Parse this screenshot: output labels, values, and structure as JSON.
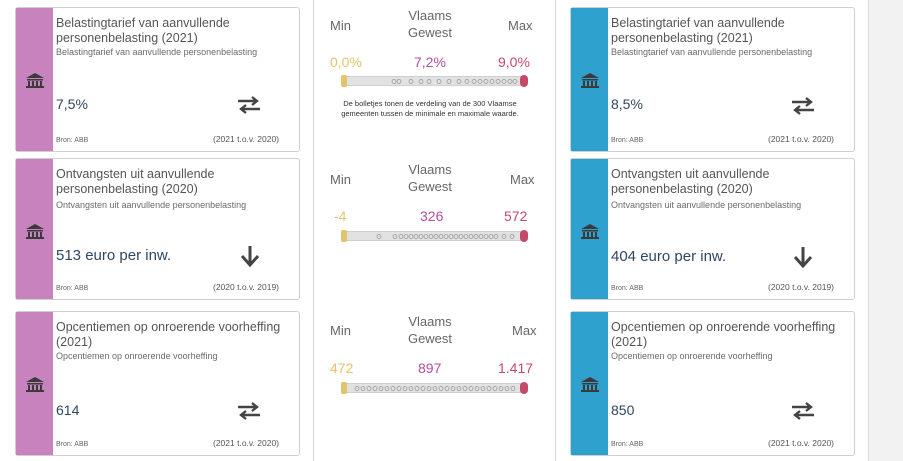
{
  "colors": {
    "left_stripe": "#c882bd",
    "right_stripe": "#2fa1cf",
    "min": "#e2c46b",
    "region": "#b14fa0",
    "max": "#c44a6a",
    "value_text": "#2f4763"
  },
  "left_cards": [
    {
      "title": "Belastingtarief van aanvullende personenbelasting (2021)",
      "subtitle": "Belastingtarief van aanvullende personenbelasting",
      "value": "7,5%",
      "trend_icon": "equal-arrows-icon",
      "source": "Bron: ABB",
      "period": "(2021 t.o.v. 2020)"
    },
    {
      "title": "Ontvangsten uit aanvullende personenbelasting (2020)",
      "subtitle": "Ontvangsten uit aanvullende personenbelasting",
      "value": "513 euro per inw.",
      "trend_icon": "arrow-down-icon",
      "source": "Bron: ABB",
      "period": "(2020 t.o.v. 2019)"
    },
    {
      "title": "Opcentiemen op onroerende voorheffing (2021)",
      "subtitle": "Opcentiemen op onroerende voorheffing",
      "value": "614",
      "trend_icon": "equal-arrows-icon",
      "source": "Bron: ABB",
      "period": "(2021 t.o.v. 2020)"
    }
  ],
  "right_cards": [
    {
      "title": "Belastingtarief van aanvullende personenbelasting (2021)",
      "subtitle": "Belastingtarief van aanvullende personenbelasting",
      "value": "8,5%",
      "trend_icon": "equal-arrows-icon",
      "source": "Bron: ABB",
      "period": "(2021 t.o.v. 2020)"
    },
    {
      "title": "Ontvangsten uit aanvullende personenbelasting (2020)",
      "subtitle": "Ontvangsten uit aanvullende personenbelasting",
      "value": "404 euro per inw.",
      "trend_icon": "arrow-down-icon",
      "source": "Bron: ABB",
      "period": "(2020 t.o.v. 2019)"
    },
    {
      "title": "Opcentiemen op onroerende voorheffing (2021)",
      "subtitle": "Opcentiemen op onroerende voorheffing",
      "value": "850",
      "trend_icon": "equal-arrows-icon",
      "source": "Bron: ABB",
      "period": "(2021 t.o.v. 2020)"
    }
  ],
  "comparisons": [
    {
      "min_label": "Min",
      "region_label_line1": "Vlaams",
      "region_label_line2": "Gewest",
      "max_label": "Max",
      "min_value": "0,0%",
      "region_value": "7,2%",
      "max_value": "9,0%",
      "note_line1": "De bolletjes tonen de verdeling van de 300 Vlaamse",
      "note_line2": "gemeenten tussen de minimale en maximale waarde."
    },
    {
      "min_label": "Min",
      "region_label_line1": "Vlaams",
      "region_label_line2": "Gewest",
      "max_label": "Max",
      "min_value": "-4",
      "region_value": "326",
      "max_value": "572"
    },
    {
      "min_label": "Min",
      "region_label_line1": "Vlaams",
      "region_label_line2": "Gewest",
      "max_label": "Max",
      "min_value": "472",
      "region_value": "897",
      "max_value": "1.417"
    }
  ]
}
